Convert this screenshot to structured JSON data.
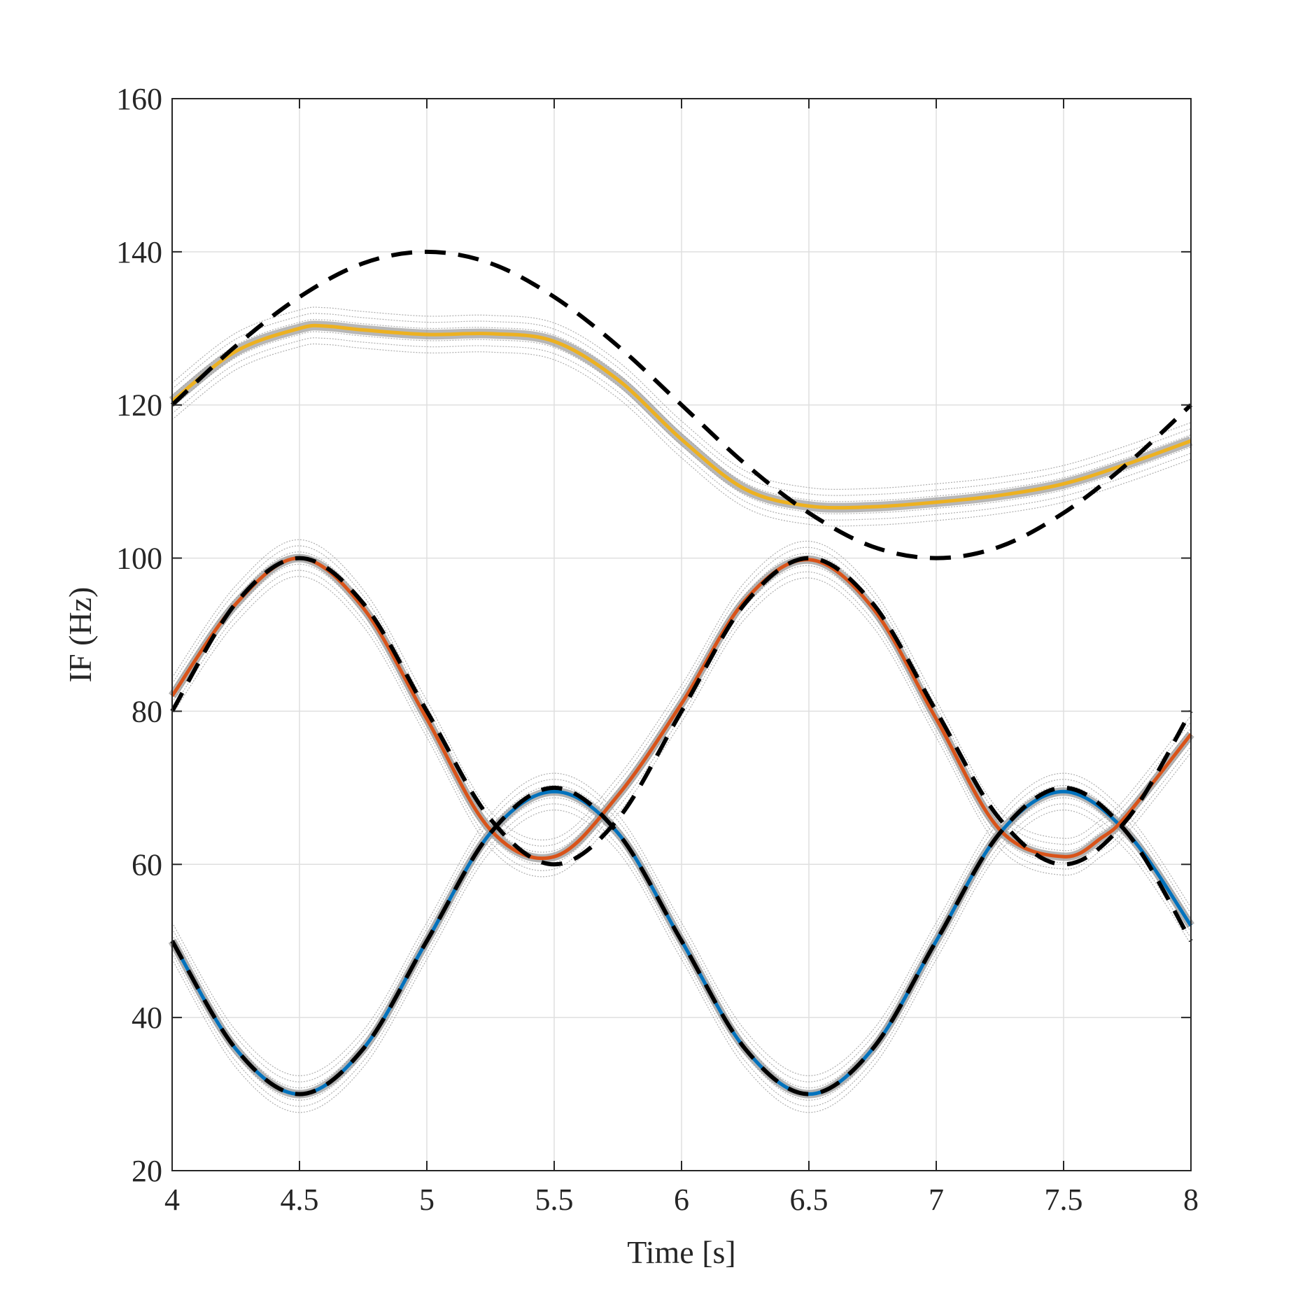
{
  "chart_data": {
    "type": "line",
    "title": "",
    "xlabel": "Time [s]",
    "ylabel": "IF (Hz)",
    "xlim": [
      4,
      8
    ],
    "ylim": [
      20,
      160
    ],
    "xticks": [
      4,
      4.5,
      5,
      5.5,
      6,
      6.5,
      7,
      7.5,
      8
    ],
    "xtick_labels": [
      "4",
      "4.5",
      "5",
      "5.5",
      "6",
      "6.5",
      "7",
      "7.5",
      "8"
    ],
    "yticks": [
      20,
      40,
      60,
      80,
      100,
      120,
      140,
      160
    ],
    "ytick_labels": [
      "20",
      "40",
      "60",
      "80",
      "100",
      "120",
      "140",
      "160"
    ],
    "grid": true,
    "legend": "none",
    "series": [
      {
        "style": "dashed",
        "color": "#000000",
        "x": [
          4,
          4.25,
          4.5,
          4.75,
          5,
          5.25,
          5.5,
          5.75,
          6,
          6.25,
          6.5,
          6.75,
          7,
          7.25,
          7.5,
          7.75,
          8
        ],
        "values": [
          120,
          127.7,
          134.1,
          138.5,
          140,
          138.5,
          134.1,
          127.7,
          120,
          112.3,
          105.9,
          101.5,
          100,
          101.5,
          105.9,
          112.3,
          120
        ]
      },
      {
        "style": "dashed",
        "color": "#000000",
        "x": [
          4,
          4.25,
          4.5,
          4.75,
          5,
          5.25,
          5.5,
          5.75,
          6,
          6.25,
          6.5,
          6.75,
          7,
          7.25,
          7.5,
          7.75,
          8
        ],
        "values": [
          80,
          94.1,
          100,
          94.1,
          80,
          65.9,
          60,
          65.9,
          80,
          94.1,
          100,
          94.1,
          80,
          65.9,
          60,
          65.9,
          80
        ]
      },
      {
        "style": "dashed",
        "color": "#000000",
        "x": [
          4,
          4.25,
          4.5,
          4.75,
          5,
          5.25,
          5.5,
          5.75,
          6,
          6.25,
          6.5,
          6.75,
          7,
          7.25,
          7.5,
          7.75,
          8
        ],
        "values": [
          50,
          35.9,
          30,
          35.9,
          50,
          64.1,
          70,
          64.1,
          50,
          35.9,
          30,
          35.9,
          50,
          64.1,
          70,
          64.1,
          50
        ]
      },
      {
        "style": "solid",
        "color": "#EDB120",
        "x": [
          4,
          4.25,
          4.5,
          4.6,
          4.75,
          5,
          5.25,
          5.5,
          5.75,
          6,
          6.25,
          6.5,
          6.75,
          7,
          7.25,
          7.5,
          7.75,
          8
        ],
        "values": [
          120.5,
          127,
          130,
          130.3,
          129.8,
          129.2,
          129.3,
          128.3,
          123.3,
          115.5,
          109,
          106.8,
          106.7,
          107.3,
          108.2,
          109.7,
          112.3,
          115.3
        ]
      },
      {
        "style": "solid",
        "color": "#D95319",
        "x": [
          4,
          4.25,
          4.5,
          4.75,
          5,
          5.25,
          5.5,
          5.75,
          6,
          6.25,
          6.5,
          6.75,
          7,
          7.25,
          7.5,
          7.65,
          7.75,
          8
        ],
        "values": [
          82,
          94,
          100,
          93.5,
          79,
          64.5,
          61,
          69,
          81,
          94.5,
          99.8,
          93.5,
          79,
          64.5,
          61,
          63.5,
          66.5,
          77
        ]
      },
      {
        "style": "solid",
        "color": "#0072BD",
        "x": [
          4,
          4.25,
          4.5,
          4.75,
          5,
          5.25,
          5.5,
          5.75,
          6,
          6.25,
          6.5,
          6.75,
          7,
          7.25,
          7.5,
          7.75,
          8
        ],
        "values": [
          50,
          35.9,
          30,
          35.9,
          50,
          64.1,
          69.5,
          64.1,
          50,
          35.9,
          30,
          35.9,
          50,
          64.1,
          69.5,
          64.1,
          52
        ]
      }
    ]
  }
}
